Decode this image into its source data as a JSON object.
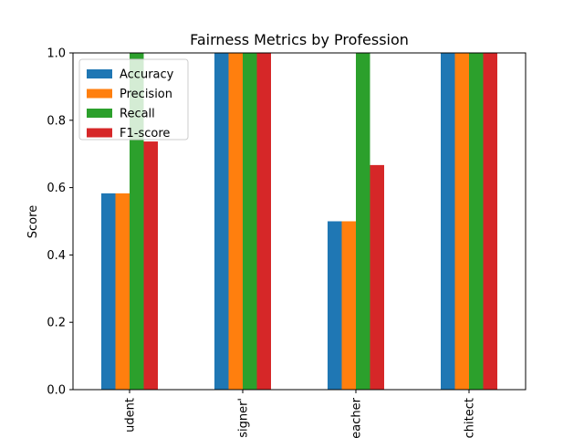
{
  "chart_data": {
    "type": "bar",
    "title": "Fairness Metrics by Profession",
    "xlabel": "",
    "ylabel": "Score",
    "ylim": [
      0,
      1
    ],
    "yticks": [
      "0.0",
      "0.2",
      "0.4",
      "0.6",
      "0.8",
      "1.0"
    ],
    "categories": [
      "udent",
      "signer'",
      "eacher",
      "chitect"
    ],
    "series": [
      {
        "name": "Accuracy",
        "color": "#1f77b4",
        "values": [
          0.583,
          1.0,
          0.5,
          1.0
        ]
      },
      {
        "name": "Precision",
        "color": "#ff7f0e",
        "values": [
          0.583,
          1.0,
          0.5,
          1.0
        ]
      },
      {
        "name": "Recall",
        "color": "#2ca02c",
        "values": [
          1.0,
          1.0,
          1.0,
          1.0
        ]
      },
      {
        "name": "F1-score",
        "color": "#d62728",
        "values": [
          0.737,
          1.0,
          0.667,
          1.0
        ]
      }
    ],
    "grid": false,
    "legend": "upper-left"
  }
}
